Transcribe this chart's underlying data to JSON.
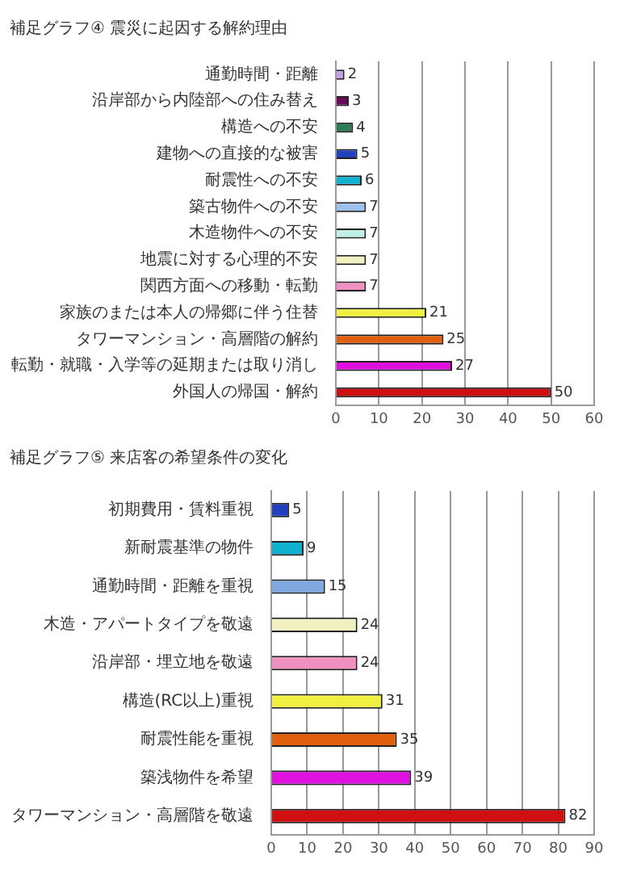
{
  "chart_data": [
    {
      "type": "bar",
      "orientation": "horizontal",
      "title": "補足グラフ④ 震災に起因する解約理由",
      "categories": [
        "通勤時間・距離",
        "沿岸部から内陸部への住み替え",
        "構造への不安",
        "建物への直接的な被害",
        "耐震性への不安",
        "築古物件への不安",
        "木造物件への不安",
        "地震に対する心理的不安",
        "関西方面への移動・転勤",
        "家族のまたは本人の帰郷に伴う住替",
        "タワーマンション・高層階の解約",
        "転勤・就職・入学等の延期または取り消し",
        "外国人の帰国・解約"
      ],
      "values": [
        2,
        3,
        4,
        5,
        6,
        7,
        7,
        7,
        7,
        21,
        25,
        27,
        50
      ],
      "colors": [
        "#c8a0e8",
        "#6a0a5a",
        "#2e7d5a",
        "#2040c0",
        "#10b0d0",
        "#9ec0ec",
        "#c0f0e8",
        "#f0f0c0",
        "#f090c0",
        "#f0f040",
        "#e06010",
        "#e010e0",
        "#d01010"
      ],
      "xlim": [
        0,
        60
      ],
      "xticks": [
        0,
        10,
        20,
        30,
        40,
        50,
        60
      ],
      "grid": "x",
      "legend": false,
      "data_labels": true
    },
    {
      "type": "bar",
      "orientation": "horizontal",
      "title": "補足グラフ⑤ 来店客の希望条件の変化",
      "categories": [
        "初期費用・賃料重視",
        "新耐震基準の物件",
        "通勤時間・距離を重視",
        "木造・アパートタイプを敬遠",
        "沿岸部・埋立地を敬遠",
        "構造(RC以上)重視",
        "耐震性能を重視",
        "築浅物件を希望",
        "タワーマンション・高層階を敬遠"
      ],
      "values": [
        5,
        9,
        15,
        24,
        24,
        31,
        35,
        39,
        82
      ],
      "colors": [
        "#2040c0",
        "#10b0d0",
        "#80a8e0",
        "#f0f0c0",
        "#f090c0",
        "#f0f040",
        "#e06010",
        "#e010e0",
        "#d01010"
      ],
      "xlim": [
        0,
        90
      ],
      "xticks": [
        0,
        10,
        20,
        30,
        40,
        50,
        60,
        70,
        80,
        90
      ],
      "grid": "x",
      "legend": false,
      "data_labels": true
    }
  ]
}
